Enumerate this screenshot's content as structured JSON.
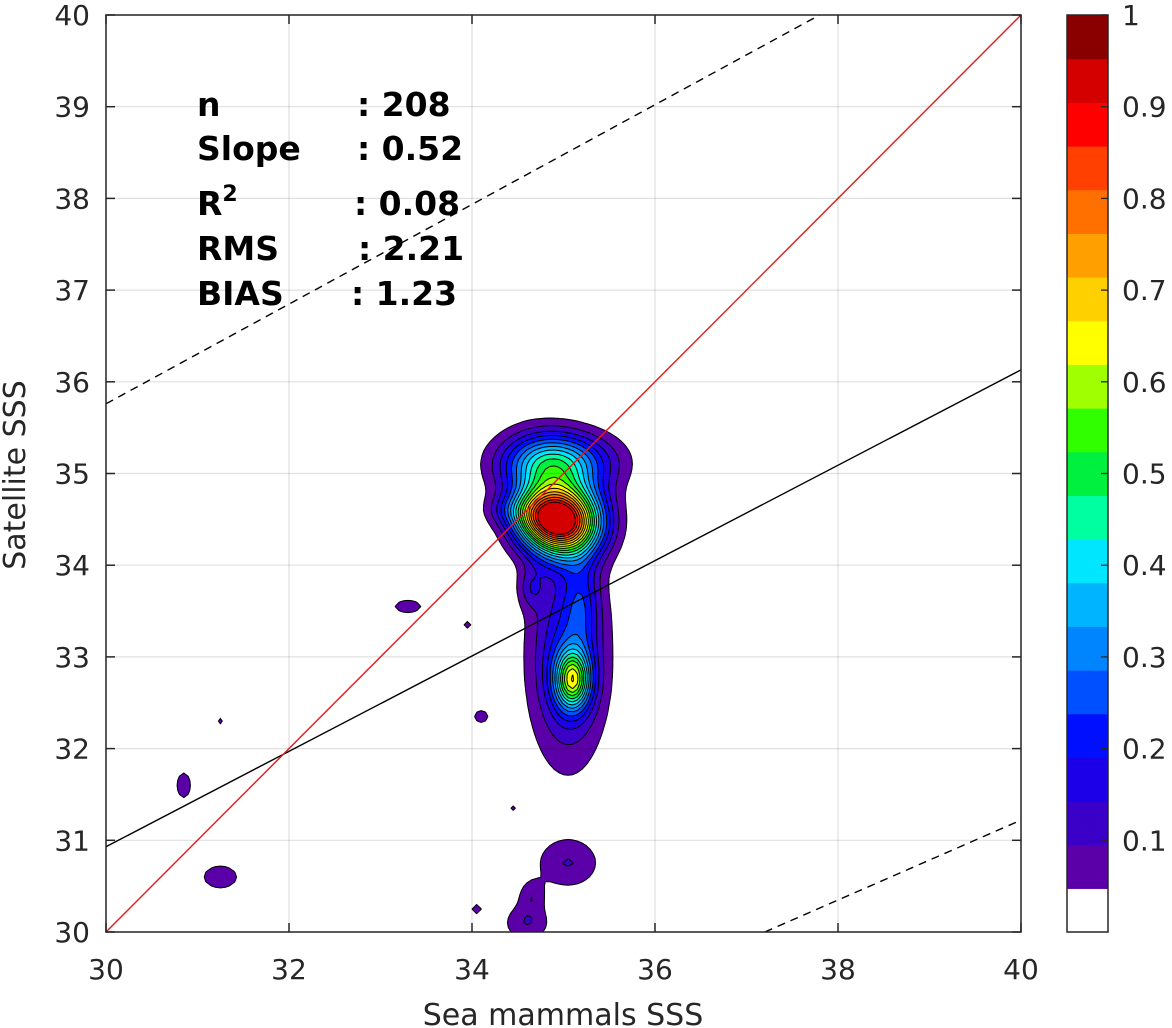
{
  "chart_data": {
    "type": "contour",
    "xlabel": "Sea mammals SSS",
    "ylabel": "Satellite SSS",
    "xlim": [
      30,
      40
    ],
    "ylim": [
      30,
      40
    ],
    "x_ticks": [
      "30",
      "32",
      "34",
      "36",
      "38",
      "40"
    ],
    "y_ticks": [
      "30",
      "31",
      "32",
      "33",
      "34",
      "35",
      "36",
      "37",
      "38",
      "39",
      "40"
    ],
    "grid": true,
    "stats": {
      "n": {
        "label": "n",
        "value": ": 208"
      },
      "slope": {
        "label": "Slope",
        "value": ": 0.52"
      },
      "r2": {
        "label": "R",
        "sup": "2",
        "value": ": 0.08"
      },
      "rms": {
        "label": "RMS",
        "value": ": 2.21"
      },
      "bias": {
        "label": "BIAS",
        "value": ": 1.23"
      }
    },
    "lines": {
      "identity": {
        "color": "#e41a1a",
        "points": [
          [
            30,
            30
          ],
          [
            40,
            40
          ]
        ]
      },
      "fit": {
        "color": "#000000",
        "points": [
          [
            30,
            30.93
          ],
          [
            40,
            36.13
          ]
        ]
      },
      "upper_bound": {
        "style": "dashed",
        "points": [
          [
            30,
            35.76
          ],
          [
            37.8,
            40
          ]
        ]
      },
      "lower_bound": {
        "style": "dashed",
        "points": [
          [
            37.2,
            30
          ],
          [
            40,
            31.22
          ]
        ]
      }
    },
    "density_levels": [
      0.05,
      0.1,
      0.15,
      0.2,
      0.25,
      0.3,
      0.35,
      0.4,
      0.45,
      0.5,
      0.55,
      0.6,
      0.65,
      0.7,
      0.75,
      0.8,
      0.85,
      0.9,
      0.95
    ],
    "density_peaks": [
      {
        "x": 35.0,
        "y": 34.48,
        "sx": 0.28,
        "sy": 0.26,
        "amp": 0.97
      },
      {
        "x": 34.7,
        "y": 34.55,
        "sx": 0.2,
        "sy": 0.2,
        "amp": 0.3
      },
      {
        "x": 34.95,
        "y": 35.12,
        "sx": 0.4,
        "sy": 0.22,
        "amp": 0.36
      },
      {
        "x": 34.75,
        "y": 35.0,
        "sx": 0.3,
        "sy": 0.3,
        "amp": 0.15
      },
      {
        "x": 35.1,
        "y": 32.75,
        "sx": 0.13,
        "sy": 0.22,
        "amp": 0.5
      },
      {
        "x": 35.05,
        "y": 33.0,
        "sx": 0.28,
        "sy": 0.75,
        "amp": 0.22
      },
      {
        "x": 35.2,
        "y": 33.6,
        "sx": 0.13,
        "sy": 0.35,
        "amp": 0.12
      },
      {
        "x": 34.65,
        "y": 33.75,
        "sx": 0.1,
        "sy": 0.15,
        "amp": 0.1
      },
      {
        "x": 34.4,
        "y": 34.6,
        "sx": 0.18,
        "sy": 0.12,
        "amp": 0.09
      },
      {
        "x": 35.05,
        "y": 30.75,
        "sx": 0.25,
        "sy": 0.2,
        "amp": 0.1
      },
      {
        "x": 34.65,
        "y": 30.4,
        "sx": 0.1,
        "sy": 0.12,
        "amp": 0.08
      },
      {
        "x": 34.6,
        "y": 30.1,
        "sx": 0.18,
        "sy": 0.15,
        "amp": 0.1
      },
      {
        "x": 33.3,
        "y": 33.55,
        "sx": 0.13,
        "sy": 0.06,
        "amp": 0.09
      },
      {
        "x": 31.25,
        "y": 30.6,
        "sx": 0.15,
        "sy": 0.1,
        "amp": 0.1
      },
      {
        "x": 30.85,
        "y": 31.6,
        "sx": 0.07,
        "sy": 0.13,
        "amp": 0.085
      },
      {
        "x": 34.1,
        "y": 32.35,
        "sx": 0.08,
        "sy": 0.07,
        "amp": 0.075
      },
      {
        "x": 33.95,
        "y": 33.35,
        "sx": 0.05,
        "sy": 0.05,
        "amp": 0.07
      },
      {
        "x": 34.05,
        "y": 30.25,
        "sx": 0.06,
        "sy": 0.06,
        "amp": 0.07
      },
      {
        "x": 34.45,
        "y": 31.35,
        "sx": 0.04,
        "sy": 0.04,
        "amp": 0.065
      },
      {
        "x": 31.25,
        "y": 32.3,
        "sx": 0.04,
        "sy": 0.05,
        "amp": 0.065
      }
    ],
    "colorbar": {
      "min": 0,
      "max": 1,
      "tick_labels": [
        "0.1",
        "0.2",
        "0.3",
        "0.4",
        "0.5",
        "0.6",
        "0.7",
        "0.8",
        "0.9",
        "1"
      ],
      "colors": [
        "#ffffff",
        "#5b00a8",
        "#3a00c8",
        "#1c00e8",
        "#0010ff",
        "#0050ff",
        "#0085ff",
        "#00b4ff",
        "#00e6ff",
        "#00ffa0",
        "#00f040",
        "#30ff00",
        "#a0ff00",
        "#ffff00",
        "#ffd000",
        "#ffa000",
        "#ff7000",
        "#ff4000",
        "#ff0000",
        "#d40000",
        "#8a0000"
      ]
    }
  }
}
